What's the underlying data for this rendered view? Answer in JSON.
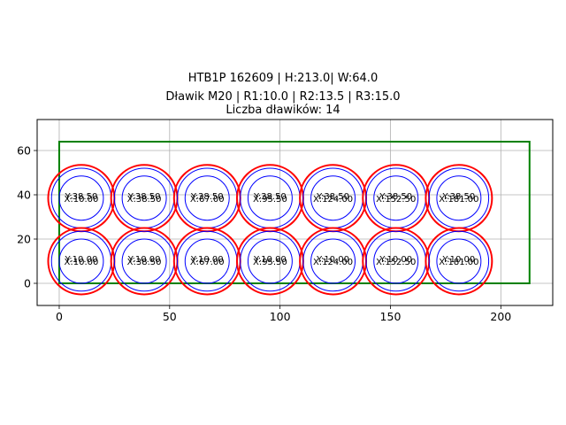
{
  "title": {
    "line1": "HTB1P 162609 | H:213.0| W:64.0",
    "line2": "Dławik M20 | R1:10.0 | R2:13.5 | R3:15.0",
    "line3": "Liczba dławików: 14"
  },
  "chart_data": {
    "type": "scatter",
    "title": "HTB1P 162609 | H:213.0| W:64.0 / Dławik M20 | R1:10.0 | R2:13.5 | R3:15.0 / Liczba dławików: 14",
    "xlabel": "",
    "ylabel": "",
    "xlim": [
      -10,
      223.5
    ],
    "ylim": [
      -10,
      74
    ],
    "xticks": [
      0,
      50,
      100,
      150,
      200
    ],
    "yticks": [
      0,
      20,
      40,
      60
    ],
    "grid": true,
    "legend": null,
    "rectangle": {
      "x": 0,
      "y": 0,
      "width": 213.0,
      "height": 64.0,
      "color": "#008000"
    },
    "radii": {
      "R1": 10.0,
      "R2": 13.5,
      "R3": 15.0
    },
    "circle_colors": {
      "R1": "#0000ff",
      "R2": "#0000ff",
      "R3": "#ff0000"
    },
    "points": [
      {
        "x": 10.0,
        "y": 38.5,
        "label_x": "X:10.00",
        "label_y": "Y:38.50"
      },
      {
        "x": 38.5,
        "y": 38.5,
        "label_x": "X:38.50",
        "label_y": "Y:38.50"
      },
      {
        "x": 67.0,
        "y": 38.5,
        "label_x": "X:67.00",
        "label_y": "Y:38.50"
      },
      {
        "x": 95.5,
        "y": 38.5,
        "label_x": "X:95.50",
        "label_y": "Y:38.50"
      },
      {
        "x": 124.0,
        "y": 38.5,
        "label_x": "X:124.00",
        "label_y": "Y:38.50"
      },
      {
        "x": 152.5,
        "y": 38.5,
        "label_x": "X:152.50",
        "label_y": "Y:38.50"
      },
      {
        "x": 181.0,
        "y": 38.5,
        "label_x": "X:181.00",
        "label_y": "Y:38.50"
      },
      {
        "x": 10.0,
        "y": 10.0,
        "label_x": "X:10.00",
        "label_y": "Y:10.00"
      },
      {
        "x": 38.5,
        "y": 10.0,
        "label_x": "X:38.50",
        "label_y": "Y:10.00"
      },
      {
        "x": 67.0,
        "y": 10.0,
        "label_x": "X:67.00",
        "label_y": "Y:10.00"
      },
      {
        "x": 95.5,
        "y": 10.0,
        "label_x": "X:95.50",
        "label_y": "Y:10.00"
      },
      {
        "x": 124.0,
        "y": 10.0,
        "label_x": "X:124.00",
        "label_y": "Y:10.00"
      },
      {
        "x": 152.5,
        "y": 10.0,
        "label_x": "X:152.50",
        "label_y": "Y:10.00"
      },
      {
        "x": 181.0,
        "y": 10.0,
        "label_x": "X:181.00",
        "label_y": "Y:10.00"
      }
    ]
  }
}
